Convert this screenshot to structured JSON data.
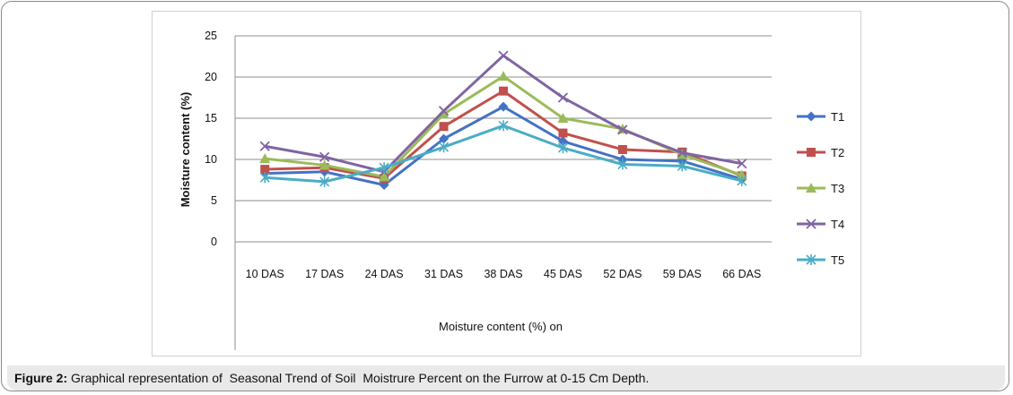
{
  "chart_data": {
    "type": "line",
    "title": "",
    "xlabel": "Moisture content (%) on",
    "ylabel": "Moisture content (%)",
    "ylim": [
      0,
      25
    ],
    "yticks": [
      0,
      5,
      10,
      15,
      20,
      25
    ],
    "grid": true,
    "legend_position": "right",
    "categories": [
      "10 DAS",
      "17 DAS",
      "24 DAS",
      "31 DAS",
      "38 DAS",
      "45 DAS",
      "52 DAS",
      "59 DAS",
      "66 DAS"
    ],
    "series": [
      {
        "name": "T1",
        "color": "#4472C4",
        "marker": "diamond",
        "values": [
          8.3,
          8.5,
          6.9,
          12.5,
          16.4,
          12.2,
          10.0,
          9.8,
          7.6
        ]
      },
      {
        "name": "T2",
        "color": "#C0504D",
        "marker": "square",
        "values": [
          8.8,
          9.0,
          7.7,
          14.0,
          18.3,
          13.2,
          11.2,
          10.9,
          8.0
        ]
      },
      {
        "name": "T3",
        "color": "#9BBB59",
        "marker": "triangle",
        "values": [
          10.1,
          9.3,
          7.9,
          15.5,
          20.1,
          15.0,
          13.7,
          10.6,
          8.1
        ]
      },
      {
        "name": "T4",
        "color": "#8064A2",
        "marker": "x",
        "values": [
          11.6,
          10.3,
          8.5,
          15.9,
          22.6,
          17.5,
          13.6,
          10.8,
          9.5
        ]
      },
      {
        "name": "T5",
        "color": "#4BACC6",
        "marker": "star",
        "values": [
          7.8,
          7.3,
          9.0,
          11.5,
          14.1,
          11.4,
          9.4,
          9.2,
          7.4
        ]
      }
    ]
  },
  "caption": {
    "label": "Figure 2:",
    "text": " Graphical representation of  Seasonal Trend of Soil  Moistrure Percent on the Furrow at 0-15 Cm Depth."
  }
}
